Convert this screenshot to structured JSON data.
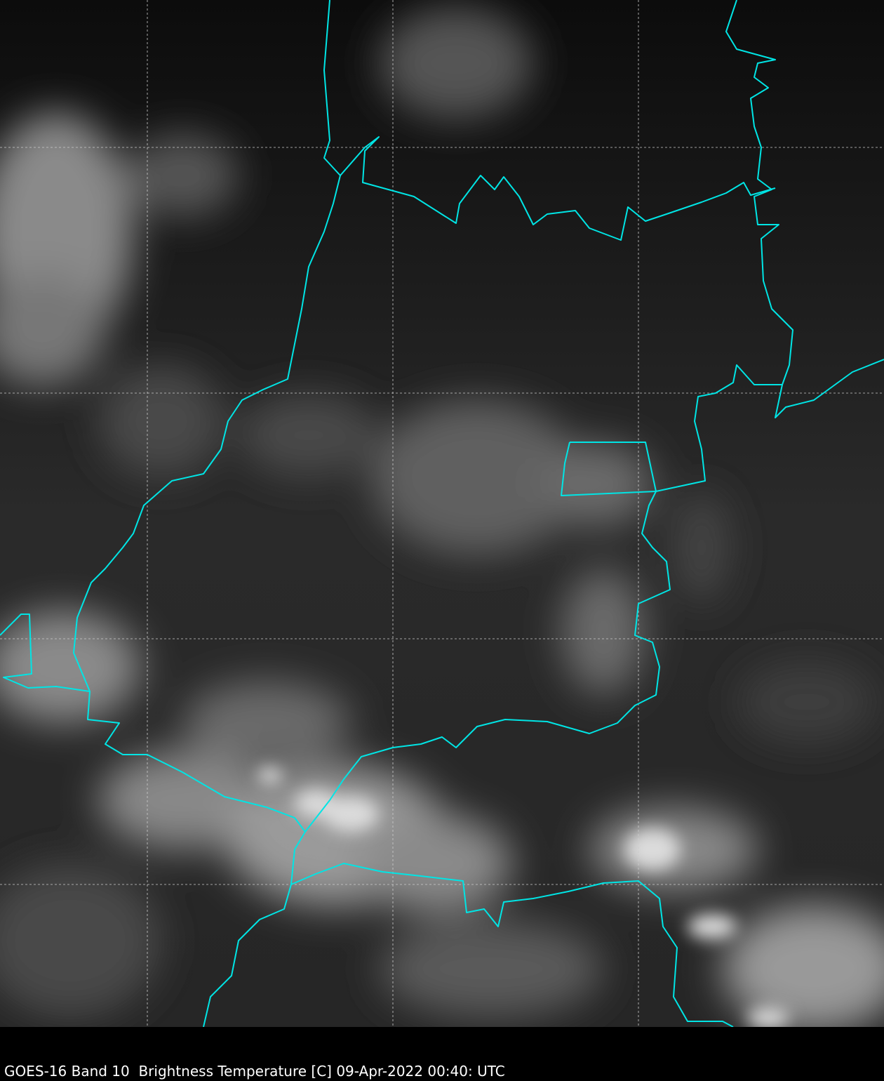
{
  "caption": "GOES-16 Band 10  Brightness Temperature [C] 09-Apr-2022 00:40: UTC",
  "colors": {
    "border": "#00e5e5",
    "grid": "#cccccc",
    "background": "#000000"
  },
  "imagery": {
    "satellite": "GOES-16",
    "band": 10,
    "colormap": "grayscale"
  }
}
